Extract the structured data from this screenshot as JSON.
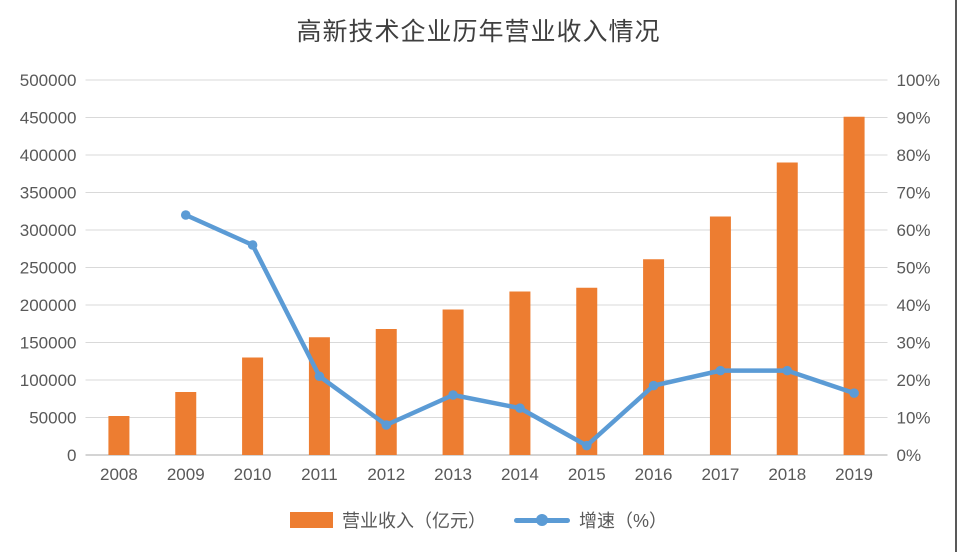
{
  "page": {
    "right_border_color": "#595959",
    "background": "#ffffff",
    "text_color": "#595959",
    "gridline_color": "#d9d9d9",
    "axisline_color": "#c6c6c6"
  },
  "chart_data": {
    "type": "combo",
    "title": "高新技术企业历年营业收入情况",
    "categories": [
      "2008",
      "2009",
      "2010",
      "2011",
      "2012",
      "2013",
      "2014",
      "2015",
      "2016",
      "2017",
      "2018",
      "2019"
    ],
    "series": [
      {
        "name": "营业收入（亿元）",
        "type": "bar",
        "axis": "left",
        "color": "#ED7D31",
        "values": [
          52000,
          84000,
          130000,
          157000,
          168000,
          194000,
          218000,
          223000,
          261000,
          318000,
          390000,
          451000
        ]
      },
      {
        "name": "增速（%）",
        "type": "line",
        "axis": "right",
        "color": "#5B9BD5",
        "values": [
          null,
          64,
          56,
          21,
          8,
          16,
          12.5,
          2.5,
          18.5,
          22.5,
          22.5,
          16.5
        ]
      }
    ],
    "left_axis": {
      "min": 0,
      "max": 500000,
      "step": 50000,
      "tick_labels": [
        "0",
        "50000",
        "100000",
        "150000",
        "200000",
        "250000",
        "300000",
        "350000",
        "400000",
        "450000",
        "500000"
      ]
    },
    "right_axis": {
      "min": 0,
      "max": 100,
      "step": 10,
      "tick_labels": [
        "0%",
        "10%",
        "20%",
        "30%",
        "40%",
        "50%",
        "60%",
        "70%",
        "80%",
        "90%",
        "100%"
      ]
    },
    "x_tick_labels": [
      "2008",
      "2009",
      "2010",
      "2011",
      "2012",
      "2013",
      "2014",
      "2015",
      "2016",
      "2017",
      "2018",
      "2019"
    ],
    "grid": true,
    "legend_position": "bottom"
  }
}
